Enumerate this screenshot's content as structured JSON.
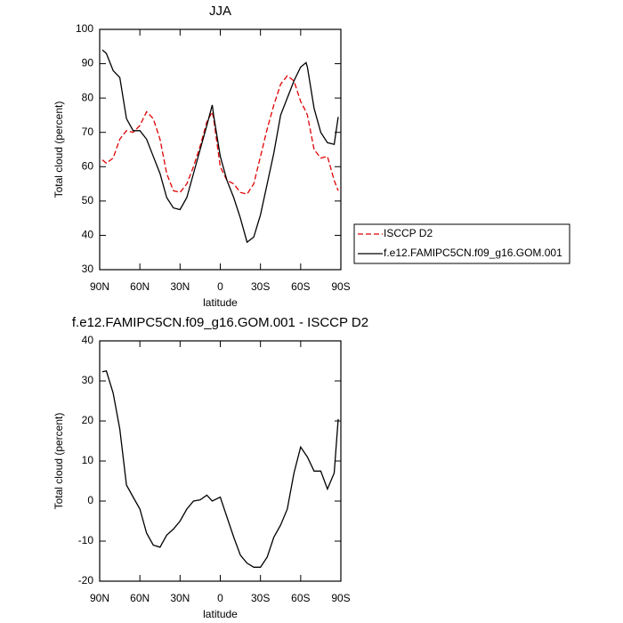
{
  "chart_data": [
    {
      "type": "line",
      "title": "JJA",
      "x_label": "latitude",
      "y_label": "Total cloud (percent)",
      "x": [
        88,
        85,
        80,
        75,
        70,
        65,
        60,
        55,
        50,
        45,
        40,
        35,
        30,
        25,
        20,
        15,
        10,
        6,
        5,
        0,
        -5,
        -10,
        -15,
        -20,
        -25,
        -30,
        -35,
        -40,
        -45,
        -50,
        -55,
        -60,
        -64,
        -65,
        -70,
        -75,
        -80,
        -85,
        -88
      ],
      "series": [
        {
          "name": "ISCCP D2",
          "color": "#e00000",
          "dash": true,
          "values": [
            62,
            61,
            62.5,
            68,
            70.5,
            70,
            72,
            76,
            74,
            68,
            58,
            53,
            52.5,
            55,
            60,
            66,
            73,
            76,
            74,
            60,
            56,
            55,
            52.5,
            52,
            55,
            63,
            71,
            78,
            84,
            86.5,
            85,
            79,
            76,
            75,
            65,
            62.5,
            63,
            56,
            53
          ]
        },
        {
          "name": "f.e12.FAMIPC5CN.f09_g16.GOM.001",
          "color": "#000000",
          "dash": false,
          "values": [
            94,
            93,
            88,
            86,
            74,
            70.5,
            70.5,
            68,
            63,
            58,
            51,
            48,
            47.5,
            51,
            58,
            65,
            72,
            78,
            75,
            63,
            56,
            51,
            45,
            38,
            39.5,
            46,
            55,
            64,
            75,
            80,
            85,
            89,
            90.3,
            89,
            77,
            70,
            67,
            66.5,
            74.5
          ]
        }
      ],
      "xlim": [
        90,
        -90
      ],
      "xticks": [
        {
          "value": 90,
          "label": "90N"
        },
        {
          "value": 60,
          "label": "60N"
        },
        {
          "value": 30,
          "label": "30N"
        },
        0,
        {
          "value": -30,
          "label": "30S"
        },
        {
          "value": -60,
          "label": "60S"
        },
        {
          "value": -90,
          "label": "90S"
        }
      ],
      "ylim": [
        30,
        100
      ],
      "yticks": [
        30,
        40,
        50,
        60,
        70,
        80,
        90,
        100
      ],
      "legend": "outside right"
    },
    {
      "type": "line",
      "title": "f.e12.FAMIPC5CN.f09_g16.GOM.001 - ISCCP D2",
      "x_label": "latitude",
      "y_label": "Total cloud (percent)",
      "x": [
        88,
        85,
        80,
        75,
        70,
        65,
        60,
        55,
        50,
        45,
        40,
        35,
        30,
        25,
        20,
        15,
        10,
        6,
        0,
        -5,
        -10,
        -15,
        -20,
        -25,
        -30,
        -35,
        -40,
        -45,
        -50,
        -55,
        -60,
        -65,
        -70,
        -75,
        -80,
        -85,
        -88
      ],
      "values": [
        32.3,
        32.5,
        27,
        18,
        4,
        1,
        -2,
        -8,
        -11,
        -11.5,
        -8.5,
        -7,
        -5,
        -2,
        0,
        0.3,
        1.5,
        0,
        1,
        -4,
        -9,
        -13.5,
        -15.5,
        -16.5,
        -16.5,
        -14,
        -9,
        -6,
        -2,
        7,
        13.5,
        11,
        7.5,
        7.5,
        3,
        7,
        20.5
      ],
      "color": "#000000",
      "xlim": [
        90,
        -90
      ],
      "xticks": [
        {
          "value": 90,
          "label": "90N"
        },
        {
          "value": 60,
          "label": "60N"
        },
        {
          "value": 30,
          "label": "30N"
        },
        0,
        {
          "value": -30,
          "label": "30S"
        },
        {
          "value": -60,
          "label": "60S"
        },
        {
          "value": -90,
          "label": "90S"
        }
      ],
      "ylim": [
        -20,
        40
      ],
      "yticks": [
        -20,
        -10,
        0,
        10,
        20,
        30,
        40
      ]
    }
  ]
}
